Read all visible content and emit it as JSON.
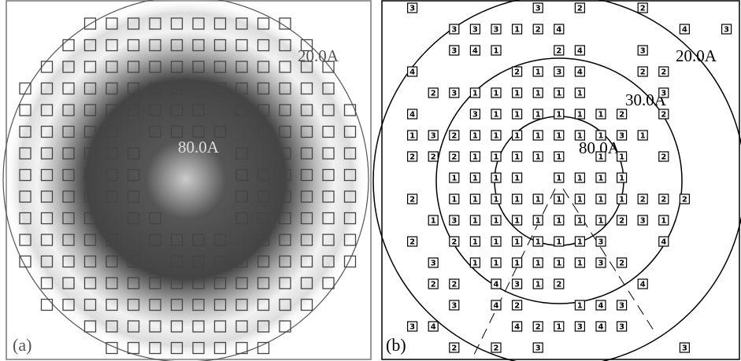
{
  "panel_a": {
    "label": "(a)",
    "rings": [
      {
        "label": "20.0A"
      },
      {
        "label": "80.0A"
      }
    ]
  },
  "panel_b": {
    "label": "(b)",
    "rings": [
      {
        "label": "20.0A"
      },
      {
        "label": "30.0A"
      },
      {
        "label": "80.0A"
      }
    ],
    "spots": [
      [
        null,
        "3",
        null,
        null,
        null,
        null,
        null,
        "3",
        null,
        "2",
        null,
        null,
        "2",
        null,
        null,
        null,
        null
      ],
      [
        null,
        null,
        null,
        "3",
        "3",
        "3",
        "1",
        "2",
        "4",
        null,
        null,
        null,
        null,
        null,
        "4",
        null,
        "3"
      ],
      [
        null,
        null,
        null,
        "3",
        "4",
        "1",
        null,
        null,
        "2",
        "4",
        null,
        null,
        "3",
        null,
        null,
        null,
        null
      ],
      [
        null,
        "4",
        null,
        null,
        null,
        null,
        "2",
        "1",
        "3",
        "4",
        null,
        null,
        "2",
        "2",
        null,
        null,
        null
      ],
      [
        null,
        null,
        "2",
        "3",
        "1",
        "1",
        "1",
        "1",
        "1",
        "1",
        null,
        null,
        null,
        "3",
        null,
        null,
        null
      ],
      [
        null,
        "4",
        null,
        null,
        "3",
        "1",
        "1",
        "1",
        "1",
        "1",
        "1",
        "2",
        null,
        "2",
        null,
        null,
        null
      ],
      [
        null,
        "1",
        "3",
        "2",
        "1",
        "1",
        "1",
        "1",
        "1",
        "1",
        "1",
        "3",
        "1",
        null,
        null,
        null,
        null
      ],
      [
        null,
        "2",
        "2",
        "2",
        "1",
        "1",
        "1",
        "1",
        "1",
        null,
        "1",
        "1",
        null,
        "2",
        null,
        null,
        null
      ],
      [
        null,
        null,
        null,
        "1",
        "1",
        "1",
        "1",
        null,
        "1",
        "1",
        "1",
        "1",
        null,
        null,
        null,
        null,
        null
      ],
      [
        null,
        "2",
        null,
        "1",
        "1",
        "1",
        "1",
        "1",
        "1",
        "1",
        "1",
        "1",
        "2",
        "2",
        "2",
        null,
        null
      ],
      [
        null,
        null,
        "1",
        "3",
        "1",
        "1",
        "1",
        "1",
        "1",
        "1",
        "1",
        "2",
        "3",
        "1",
        null,
        null,
        null
      ],
      [
        null,
        "2",
        null,
        "2",
        "1",
        "1",
        "1",
        "1",
        "1",
        "1",
        "3",
        null,
        null,
        "4",
        null,
        null,
        null
      ],
      [
        null,
        null,
        "3",
        null,
        "1",
        "1",
        "1",
        "1",
        "1",
        "1",
        "3",
        "2",
        null,
        null,
        null,
        null,
        null
      ],
      [
        null,
        null,
        "2",
        "2",
        null,
        "4",
        "3",
        "1",
        "2",
        null,
        null,
        null,
        "4",
        null,
        null,
        null,
        null
      ],
      [
        null,
        null,
        null,
        "3",
        null,
        "4",
        "2",
        null,
        null,
        "1",
        "4",
        "3",
        null,
        null,
        null,
        null,
        null
      ],
      [
        null,
        "3",
        "4",
        null,
        null,
        null,
        "4",
        "2",
        "1",
        "3",
        "4",
        "3",
        null,
        null,
        null,
        null,
        null
      ],
      [
        null,
        null,
        null,
        "2",
        null,
        "2",
        null,
        "3",
        null,
        null,
        null,
        null,
        null,
        null,
        "3",
        null,
        null
      ]
    ]
  }
}
